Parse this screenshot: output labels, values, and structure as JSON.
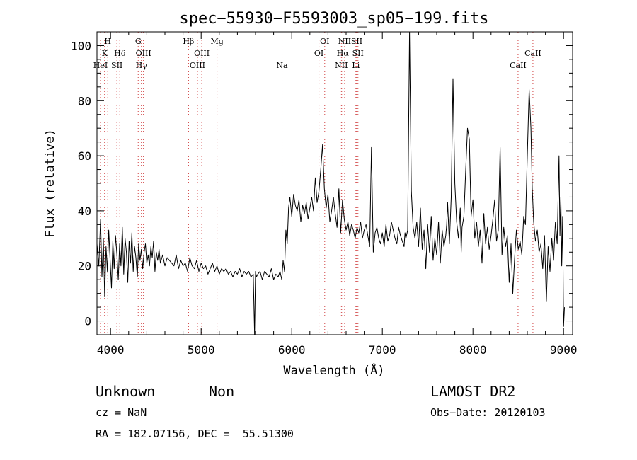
{
  "chart_data": {
    "type": "line",
    "title": "spec−55930−F5593003_sp05−199.fits",
    "xlabel": "Wavelength (Å)",
    "ylabel": "Flux (relative)",
    "xlim": [
      3850,
      9100
    ],
    "ylim": [
      -5,
      105
    ],
    "x_ticks": [
      4000,
      5000,
      6000,
      7000,
      8000,
      9000
    ],
    "y_ticks": [
      0,
      20,
      40,
      60,
      80,
      100
    ],
    "x_minor_step": 200,
    "y_minor_step": 5,
    "grid": false,
    "line_color": "#000000",
    "marker_color": "#d04040",
    "spectral_lines": [
      {
        "label": "HeI",
        "x": 3889,
        "row": 3
      },
      {
        "label": "K",
        "x": 3934,
        "row": 2
      },
      {
        "label": "H",
        "x": 3969,
        "row": 1
      },
      {
        "label": "SII",
        "x": 4070,
        "row": 3
      },
      {
        "label": "Hδ",
        "x": 4102,
        "row": 2
      },
      {
        "label": "G",
        "x": 4305,
        "row": 1
      },
      {
        "label": "OIII",
        "x": 4363,
        "row": 2
      },
      {
        "label": "Hγ",
        "x": 4340,
        "row": 3
      },
      {
        "label": "Hβ",
        "x": 4861,
        "row": 1
      },
      {
        "label": "OIII",
        "x": 4959,
        "row": 3
      },
      {
        "label": "OIII",
        "x": 5007,
        "row": 2
      },
      {
        "label": "Mg",
        "x": 5175,
        "row": 1
      },
      {
        "label": "Na",
        "x": 5893,
        "row": 3
      },
      {
        "label": "OI",
        "x": 6300,
        "row": 2
      },
      {
        "label": "OI",
        "x": 6364,
        "row": 1
      },
      {
        "label": "NII",
        "x": 6548,
        "row": 3
      },
      {
        "label": "NII",
        "x": 6584,
        "row": 1
      },
      {
        "label": "Hα",
        "x": 6563,
        "row": 2
      },
      {
        "label": "SII",
        "x": 6717,
        "row": 1
      },
      {
        "label": "SII",
        "x": 6731,
        "row": 2
      },
      {
        "label": "Li",
        "x": 6708,
        "row": 3
      },
      {
        "label": "CaII",
        "x": 8498,
        "row": 3
      },
      {
        "label": "CaII",
        "x": 8662,
        "row": 2
      }
    ],
    "series": [
      {
        "x": [
          3850,
          3870,
          3890,
          3905,
          3920,
          3935,
          3950,
          3965,
          3980,
          3995,
          4010,
          4025,
          4040,
          4055,
          4070,
          4085,
          4100,
          4115,
          4130,
          4145,
          4160,
          4175,
          4190,
          4205,
          4220,
          4235,
          4250,
          4265,
          4280,
          4295,
          4310,
          4325,
          4340,
          4355,
          4370,
          4385,
          4400,
          4415,
          4430,
          4445,
          4460,
          4475,
          4490,
          4505,
          4520,
          4535,
          4550,
          4575,
          4600,
          4625,
          4650,
          4675,
          4700,
          4725,
          4750,
          4775,
          4800,
          4825,
          4850,
          4875,
          4900,
          4925,
          4950,
          4975,
          5000,
          5025,
          5050,
          5075,
          5100,
          5125,
          5150,
          5175,
          5200,
          5225,
          5250,
          5275,
          5300,
          5325,
          5350,
          5375,
          5400,
          5425,
          5450,
          5475,
          5500,
          5525,
          5550,
          5575,
          5590,
          5600,
          5610,
          5625,
          5650,
          5675,
          5700,
          5725,
          5750,
          5775,
          5800,
          5825,
          5850,
          5870,
          5890,
          5905,
          5920,
          5935,
          5950,
          5965,
          5980,
          6000,
          6020,
          6040,
          6060,
          6080,
          6100,
          6120,
          6140,
          6160,
          6180,
          6200,
          6220,
          6240,
          6260,
          6280,
          6300,
          6320,
          6340,
          6360,
          6380,
          6400,
          6420,
          6440,
          6460,
          6480,
          6500,
          6520,
          6540,
          6560,
          6580,
          6600,
          6620,
          6640,
          6660,
          6680,
          6700,
          6720,
          6740,
          6760,
          6780,
          6800,
          6820,
          6840,
          6850,
          6860,
          6880,
          6900,
          6920,
          6940,
          6960,
          6980,
          7000,
          7020,
          7040,
          7060,
          7080,
          7100,
          7120,
          7140,
          7160,
          7180,
          7200,
          7220,
          7240,
          7250,
          7260,
          7280,
          7300,
          7320,
          7340,
          7360,
          7380,
          7400,
          7420,
          7440,
          7460,
          7480,
          7500,
          7520,
          7540,
          7560,
          7580,
          7600,
          7620,
          7640,
          7660,
          7680,
          7700,
          7710,
          7720,
          7740,
          7760,
          7780,
          7800,
          7820,
          7840,
          7860,
          7870,
          7880,
          7900,
          7920,
          7940,
          7960,
          7980,
          8000,
          8020,
          8040,
          8060,
          8080,
          8100,
          8120,
          8140,
          8160,
          8180,
          8200,
          8220,
          8240,
          8260,
          8280,
          8300,
          8320,
          8340,
          8360,
          8380,
          8400,
          8420,
          8440,
          8460,
          8480,
          8500,
          8520,
          8540,
          8560,
          8580,
          8600,
          8620,
          8640,
          8655,
          8670,
          8690,
          8710,
          8730,
          8750,
          8770,
          8790,
          8810,
          8830,
          8850,
          8870,
          8890,
          8910,
          8930,
          8950,
          8960,
          8970,
          8980,
          8990,
          9000,
          9010
        ],
        "y": [
          28,
          20,
          37,
          16,
          30,
          9,
          27,
          18,
          33,
          22,
          12,
          29,
          19,
          31,
          24,
          15,
          28,
          20,
          34,
          17,
          30,
          25,
          14,
          29,
          21,
          32,
          18,
          27,
          23,
          16,
          28,
          22,
          26,
          19,
          25,
          28,
          21,
          24,
          20,
          27,
          23,
          29,
          18,
          25,
          22,
          26,
          21,
          24,
          20,
          23,
          22,
          21,
          20,
          24,
          19,
          22,
          20,
          21,
          18,
          23,
          20,
          19,
          22,
          18,
          21,
          19,
          20,
          17,
          19,
          21,
          18,
          20,
          17,
          19,
          18,
          19,
          17,
          18,
          16,
          18,
          17,
          19,
          16,
          18,
          17,
          18,
          16,
          17,
          -5,
          18,
          16,
          17,
          18,
          15,
          18,
          17,
          16,
          19,
          15,
          17,
          16,
          18,
          15,
          22,
          18,
          33,
          28,
          41,
          45,
          38,
          46,
          42,
          40,
          44,
          36,
          42,
          39,
          43,
          37,
          41,
          45,
          40,
          52,
          43,
          47,
          55,
          64,
          48,
          41,
          46,
          36,
          40,
          45,
          39,
          34,
          48,
          32,
          44,
          37,
          33,
          36,
          31,
          35,
          33,
          30,
          34,
          32,
          36,
          30,
          33,
          35,
          31,
          29,
          27,
          63,
          25,
          32,
          34,
          30,
          28,
          32,
          27,
          35,
          29,
          31,
          36,
          33,
          30,
          28,
          34,
          31,
          29,
          27,
          32,
          30,
          33,
          105,
          47,
          34,
          30,
          36,
          27,
          41,
          26,
          33,
          19,
          35,
          25,
          38,
          22,
          30,
          24,
          36,
          21,
          33,
          27,
          31,
          35,
          43,
          28,
          45,
          88,
          50,
          36,
          30,
          41,
          25,
          34,
          38,
          55,
          70,
          66,
          38,
          44,
          30,
          36,
          27,
          33,
          21,
          39,
          28,
          34,
          26,
          31,
          37,
          44,
          29,
          33,
          63,
          24,
          34,
          27,
          31,
          14,
          28,
          10,
          23,
          33,
          26,
          29,
          24,
          38,
          35,
          60,
          84,
          70,
          48,
          36,
          29,
          33,
          25,
          28,
          19,
          31,
          7,
          27,
          18,
          30,
          22,
          36,
          28,
          60,
          31,
          45,
          20,
          38,
          -2,
          5
        ]
      }
    ]
  },
  "info": {
    "class_text": "Unknown",
    "subclass_text": "Non",
    "cz_text": "cz = NaN",
    "coords_text": "RA = 182.07156, DEC =  55.51300",
    "survey_text": "LAMOST DR2",
    "obsdate_text": "Obs−Date: 20120103"
  }
}
